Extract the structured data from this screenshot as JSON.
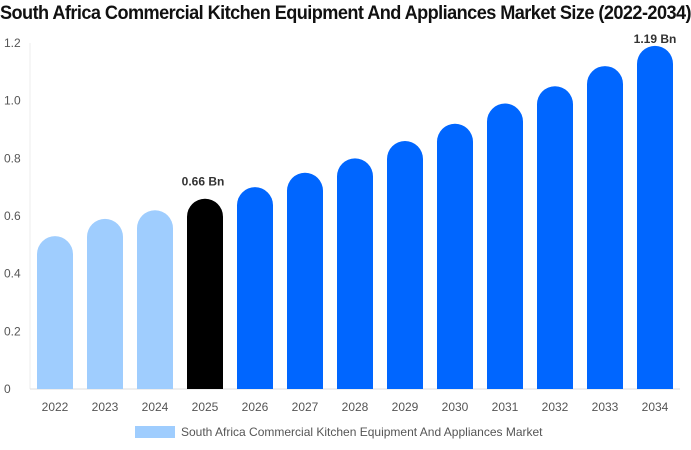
{
  "chart_data": {
    "type": "bar",
    "title": "South Africa Commercial Kitchen Equipment And Appliances Market Size (2022-2034)",
    "categories": [
      "2022",
      "2023",
      "2024",
      "2025",
      "2026",
      "2027",
      "2028",
      "2029",
      "2030",
      "2031",
      "2032",
      "2033",
      "2034"
    ],
    "series": [
      {
        "name": "South Africa Commercial Kitchen Equipment And Appliances Market",
        "values": [
          0.53,
          0.59,
          0.62,
          0.66,
          0.7,
          0.75,
          0.8,
          0.86,
          0.92,
          0.99,
          1.05,
          1.12,
          1.19
        ]
      }
    ],
    "data_labels": {
      "3": "0.66 Bn",
      "12": "1.19 Bn"
    },
    "ylim": [
      0,
      1.2
    ],
    "yticks": [
      "0",
      "0.2",
      "0.4",
      "0.6",
      "0.8",
      "1.0",
      "1.2"
    ],
    "xlabel": "",
    "ylabel": "",
    "grid": false,
    "legend": "bottom",
    "colors": {
      "historic": "#9fcdfe",
      "current": "#000000",
      "forecast": "#0066ff"
    }
  }
}
